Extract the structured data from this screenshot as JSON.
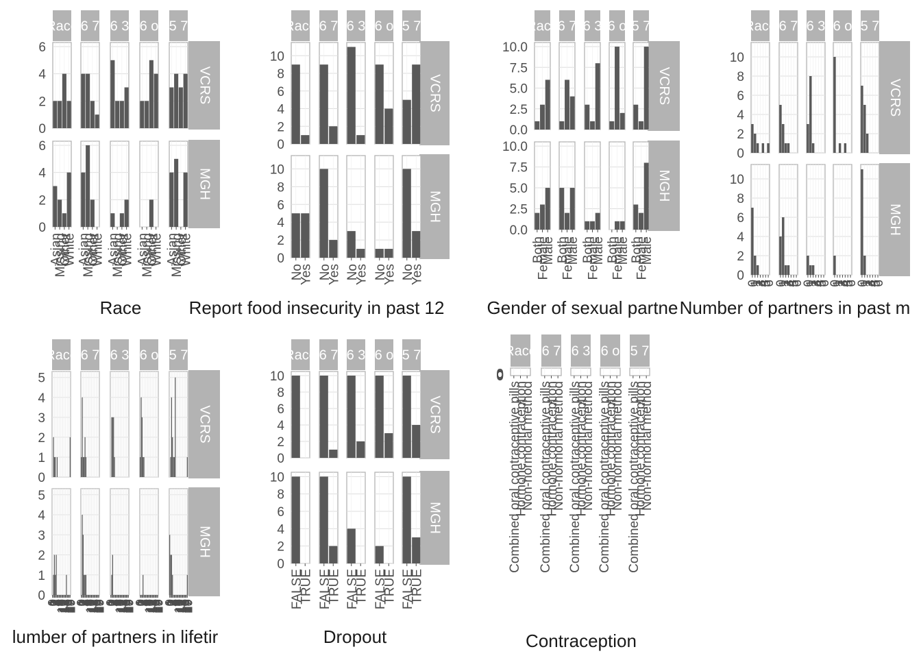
{
  "facet_rows": [
    "VCRS",
    "MGH"
  ],
  "facet_cols": [
    "Race",
    "6 7",
    "6 3",
    "6 o",
    "5 7"
  ],
  "chart_data": [
    {
      "type": "bar",
      "xlabel": "Race",
      "categories": [
        "Asian",
        "Missing",
        "Other",
        "White"
      ],
      "y_ticks": [
        "0",
        "2",
        "4",
        "6"
      ],
      "ylim": [
        0,
        6.3
      ],
      "values": {
        "VCRS": [
          [
            2,
            2,
            4,
            2
          ],
          [
            4,
            4,
            2,
            1
          ],
          [
            5,
            2,
            2,
            3
          ],
          [
            2,
            2,
            5,
            4
          ],
          [
            3,
            4,
            3,
            4
          ]
        ],
        "MGH": [
          [
            3,
            2,
            1,
            4
          ],
          [
            4,
            6,
            2,
            0
          ],
          [
            1,
            0,
            1,
            2
          ],
          [
            0,
            0,
            2,
            0
          ],
          [
            4,
            5,
            0,
            4
          ]
        ]
      }
    },
    {
      "type": "bar",
      "xlabel": "Report food insecurity in past 12",
      "categories": [
        "No",
        "Yes"
      ],
      "y_ticks": [
        "0",
        "2",
        "4",
        "6",
        "8",
        "10"
      ],
      "ylim": [
        0,
        11.5
      ],
      "values": {
        "VCRS": [
          [
            9,
            1
          ],
          [
            9,
            2
          ],
          [
            11,
            1
          ],
          [
            9,
            4
          ],
          [
            5,
            9
          ]
        ],
        "MGH": [
          [
            5,
            5
          ],
          [
            10,
            2
          ],
          [
            3,
            1
          ],
          [
            1,
            1
          ],
          [
            10,
            3
          ]
        ]
      }
    },
    {
      "type": "bar",
      "xlabel": "Gender of sexual partne",
      "categories": [
        "Both",
        "Female",
        "Male"
      ],
      "y_ticks": [
        "0.0",
        "2.5",
        "5.0",
        "7.5",
        "10.0"
      ],
      "ylim": [
        0,
        10.5
      ],
      "values": {
        "VCRS": [
          [
            1,
            3,
            6
          ],
          [
            1,
            6,
            4
          ],
          [
            3,
            1,
            8
          ],
          [
            1,
            10,
            2
          ],
          [
            3,
            1,
            10
          ]
        ],
        "MGH": [
          [
            2,
            3,
            5
          ],
          [
            5,
            2,
            5
          ],
          [
            1,
            1,
            2
          ],
          [
            0,
            1,
            1
          ],
          [
            3,
            2,
            8
          ]
        ]
      }
    },
    {
      "type": "bar",
      "xlabel": "Number of partners in past m",
      "categories": [
        "0",
        "1",
        "2",
        "3",
        "4",
        "5",
        "6"
      ],
      "y_ticks": [
        "0",
        "2",
        "4",
        "6",
        "8",
        "10"
      ],
      "ylim": [
        0,
        11.5
      ],
      "values": {
        "VCRS": [
          [
            3,
            2,
            1,
            0,
            1,
            0,
            1
          ],
          [
            5,
            3,
            1,
            1,
            0,
            0,
            0
          ],
          [
            3,
            8,
            1,
            0,
            0,
            0,
            0
          ],
          [
            10,
            0,
            1,
            0,
            1,
            0,
            0
          ],
          [
            7,
            5,
            2,
            0,
            0,
            0,
            0
          ]
        ],
        "MGH": [
          [
            7,
            2,
            1,
            0,
            0,
            0,
            0
          ],
          [
            4,
            6,
            1,
            1,
            0,
            0,
            0
          ],
          [
            2,
            1,
            1,
            0,
            0,
            0,
            0
          ],
          [
            2,
            0,
            0,
            0,
            0,
            0,
            0
          ],
          [
            11,
            2,
            0,
            0,
            0,
            0,
            0
          ]
        ]
      }
    },
    {
      "type": "bar",
      "xlabel": "lumber of partners in lifetir",
      "categories": [
        "0",
        "1",
        "2",
        "3",
        "4",
        "5",
        "6",
        "7",
        "8",
        "9",
        "10",
        "11",
        "12",
        "13",
        "14",
        "15",
        "16",
        "17",
        "18",
        "19"
      ],
      "y_ticks": [
        "0",
        "1",
        "2",
        "3",
        "4",
        "5"
      ],
      "ylim": [
        0,
        5.3
      ],
      "values": {
        "VCRS": [
          [
            0,
            2,
            1,
            1,
            0,
            1,
            0,
            0,
            0,
            0,
            0,
            0,
            0,
            0,
            0,
            0,
            0,
            0,
            0,
            2
          ],
          [
            1,
            4,
            1,
            1,
            2,
            1,
            0,
            0,
            0,
            0,
            0,
            0,
            0,
            0,
            0,
            0,
            0,
            0,
            0,
            0
          ],
          [
            0,
            3,
            3,
            3,
            1,
            0,
            0,
            0,
            0,
            0,
            0,
            0,
            0,
            0,
            0,
            0,
            0,
            0,
            0,
            0
          ],
          [
            1,
            4,
            3,
            1,
            1,
            0,
            0,
            0,
            0,
            0,
            0,
            0,
            0,
            0,
            0,
            0,
            0,
            0,
            0,
            0
          ],
          [
            0,
            1,
            4,
            2,
            1,
            1,
            5,
            0,
            0,
            0,
            0,
            0,
            0,
            0,
            0,
            0,
            0,
            0,
            0,
            1
          ]
        ],
        "MGH": [
          [
            0,
            1,
            2,
            1,
            2,
            0,
            0,
            0,
            0,
            0,
            0,
            0,
            0,
            0,
            0,
            1,
            0,
            0,
            0,
            0
          ],
          [
            0,
            4,
            3,
            1,
            1,
            1,
            0,
            0,
            0,
            0,
            0,
            0,
            0,
            0,
            0,
            0,
            0,
            0,
            0,
            0
          ],
          [
            0,
            1,
            2,
            0,
            0,
            0,
            0,
            0,
            0,
            0,
            0,
            0,
            0,
            0,
            0,
            0,
            0,
            0,
            0,
            0
          ],
          [
            0,
            0,
            0,
            1,
            0,
            0,
            0,
            0,
            0,
            0,
            0,
            0,
            0,
            0,
            0,
            0,
            0,
            0,
            0,
            0
          ],
          [
            3,
            2,
            2,
            1,
            0,
            0,
            0,
            0,
            0,
            0,
            0,
            0,
            0,
            0,
            0,
            0,
            0,
            0,
            0,
            1
          ]
        ]
      }
    },
    {
      "type": "bar",
      "xlabel": "Dropout",
      "categories": [
        "FALSE",
        "TRUE"
      ],
      "y_ticks": [
        "0",
        "2",
        "4",
        "6",
        "8",
        "10"
      ],
      "ylim": [
        0,
        10.5
      ],
      "values": {
        "VCRS": [
          [
            10,
            0
          ],
          [
            10,
            1
          ],
          [
            10,
            2
          ],
          [
            10,
            3
          ],
          [
            10,
            4
          ]
        ],
        "MGH": [
          [
            10,
            0
          ],
          [
            10,
            2
          ],
          [
            4,
            0
          ],
          [
            2,
            0
          ],
          [
            10,
            3
          ]
        ]
      }
    },
    {
      "type": "bar",
      "xlabel": "Contraception",
      "categories": [
        "Combined oral contraceptive pills",
        "Hormone contraception",
        "Non-hormonal method"
      ],
      "y_ticks": [
        "0",
        "0",
        "0",
        "0"
      ],
      "ylim": [
        0,
        1
      ],
      "values": {
        "VCRS": [
          [
            0,
            0,
            0
          ],
          [
            0,
            0,
            0
          ],
          [
            0,
            0,
            0
          ],
          [
            0,
            0,
            0
          ],
          [
            0,
            0,
            0
          ]
        ]
      }
    }
  ]
}
